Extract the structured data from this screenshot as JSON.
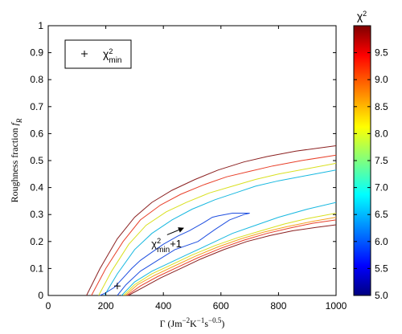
{
  "chart_data": {
    "type": "line",
    "chart_kind": "contour",
    "title": "",
    "xlabel": "Γ (Jm⁻²K⁻¹s⁻⁰·⁵)",
    "ylabel": "Roughness fraction f_R",
    "xlim": [
      0,
      1000
    ],
    "ylim": [
      0,
      1
    ],
    "x_ticks": [
      "0",
      "200",
      "400",
      "600",
      "800",
      "1000"
    ],
    "y_ticks": [
      "0",
      "0.1",
      "0.2",
      "0.3",
      "0.4",
      "0.5",
      "0.6",
      "0.7",
      "0.8",
      "0.9",
      "1"
    ],
    "grid": false,
    "legend": {
      "placement": "top-left",
      "marker": "+",
      "label": "χ²min"
    },
    "min_point": {
      "x": 240,
      "y": 0.035
    },
    "annotation": {
      "text": "χ²min+1",
      "text_x": 375,
      "text_y": 0.19,
      "arrow_to_x": 470,
      "arrow_to_y": 0.25
    },
    "colorbar": {
      "label": "χ²",
      "range": [
        5.0,
        10.0
      ],
      "tick_labels": [
        "5.0",
        "5.5",
        "6.0",
        "6.5",
        "7.0",
        "7.5",
        "8.0",
        "8.5",
        "9.0",
        "9.5"
      ],
      "colormap": "jet"
    },
    "series": [
      {
        "level": 6.0,
        "color": "#1f4fe0",
        "points": [
          [
            240,
            0
          ],
          [
            270,
            0.04
          ],
          [
            320,
            0.09
          ],
          [
            380,
            0.13
          ],
          [
            440,
            0.17
          ],
          [
            520,
            0.2
          ],
          [
            580,
            0.245
          ],
          [
            630,
            0.28
          ],
          [
            680,
            0.3
          ],
          [
            700,
            0.305
          ],
          [
            640,
            0.305
          ],
          [
            590,
            0.295
          ],
          [
            570,
            0.29
          ],
          [
            540,
            0.27
          ],
          [
            490,
            0.24
          ],
          [
            450,
            0.22
          ],
          [
            400,
            0.19
          ],
          [
            360,
            0.16
          ],
          [
            320,
            0.13
          ],
          [
            290,
            0.1
          ],
          [
            260,
            0.065
          ],
          [
            230,
            0.03
          ],
          [
            200,
            0.01
          ],
          [
            180,
            0
          ]
        ]
      },
      {
        "level": 7.0,
        "color": "#18b8e0",
        "points": [
          [
            255,
            0
          ],
          [
            300,
            0.05
          ],
          [
            360,
            0.09
          ],
          [
            420,
            0.12
          ],
          [
            480,
            0.15
          ],
          [
            560,
            0.19
          ],
          [
            640,
            0.23
          ],
          [
            720,
            0.26
          ],
          [
            800,
            0.29
          ],
          [
            900,
            0.32
          ],
          [
            1000,
            0.345
          ]
        ]
      },
      {
        "level": 7.0,
        "color": "#18b8e0",
        "points": [
          [
            195,
            0
          ],
          [
            240,
            0.08
          ],
          [
            300,
            0.17
          ],
          [
            360,
            0.23
          ],
          [
            430,
            0.28
          ],
          [
            500,
            0.32
          ],
          [
            580,
            0.355
          ],
          [
            650,
            0.38
          ],
          [
            720,
            0.405
          ],
          [
            800,
            0.425
          ],
          [
            900,
            0.445
          ],
          [
            1000,
            0.465
          ]
        ]
      },
      {
        "level": 8.0,
        "color": "#d9e020",
        "points": [
          [
            262,
            0
          ],
          [
            300,
            0.04
          ],
          [
            360,
            0.08
          ],
          [
            430,
            0.115
          ],
          [
            500,
            0.15
          ],
          [
            580,
            0.185
          ],
          [
            660,
            0.215
          ],
          [
            740,
            0.24
          ],
          [
            820,
            0.265
          ],
          [
            900,
            0.285
          ],
          [
            1000,
            0.305
          ]
        ]
      },
      {
        "level": 8.0,
        "color": "#d9e020",
        "points": [
          [
            175,
            0
          ],
          [
            220,
            0.09
          ],
          [
            280,
            0.19
          ],
          [
            340,
            0.26
          ],
          [
            410,
            0.31
          ],
          [
            480,
            0.345
          ],
          [
            560,
            0.38
          ],
          [
            640,
            0.405
          ],
          [
            720,
            0.43
          ],
          [
            800,
            0.45
          ],
          [
            900,
            0.47
          ],
          [
            1000,
            0.49
          ]
        ]
      },
      {
        "level": 8.5,
        "color": "#f5a020",
        "points": [
          [
            268,
            0
          ],
          [
            310,
            0.04
          ],
          [
            370,
            0.075
          ],
          [
            440,
            0.11
          ],
          [
            510,
            0.145
          ],
          [
            590,
            0.18
          ],
          [
            670,
            0.21
          ],
          [
            750,
            0.235
          ],
          [
            830,
            0.255
          ],
          [
            920,
            0.275
          ],
          [
            1000,
            0.29
          ]
        ]
      },
      {
        "level": 9.0,
        "color": "#e8402a",
        "points": [
          [
            273,
            0
          ],
          [
            320,
            0.035
          ],
          [
            380,
            0.07
          ],
          [
            450,
            0.105
          ],
          [
            520,
            0.14
          ],
          [
            600,
            0.175
          ],
          [
            680,
            0.205
          ],
          [
            760,
            0.23
          ],
          [
            840,
            0.25
          ],
          [
            920,
            0.268
          ],
          [
            1000,
            0.28
          ]
        ]
      },
      {
        "level": 9.0,
        "color": "#e8402a",
        "points": [
          [
            150,
            0
          ],
          [
            200,
            0.1
          ],
          [
            260,
            0.2
          ],
          [
            320,
            0.28
          ],
          [
            390,
            0.335
          ],
          [
            460,
            0.375
          ],
          [
            540,
            0.41
          ],
          [
            620,
            0.44
          ],
          [
            700,
            0.46
          ],
          [
            780,
            0.48
          ],
          [
            880,
            0.5
          ],
          [
            1000,
            0.52
          ]
        ]
      },
      {
        "level": 9.8,
        "color": "#8b2020",
        "points": [
          [
            278,
            0
          ],
          [
            330,
            0.03
          ],
          [
            390,
            0.065
          ],
          [
            460,
            0.1
          ],
          [
            530,
            0.135
          ],
          [
            610,
            0.17
          ],
          [
            690,
            0.2
          ],
          [
            770,
            0.222
          ],
          [
            850,
            0.24
          ],
          [
            930,
            0.252
          ],
          [
            1000,
            0.262
          ]
        ]
      },
      {
        "level": 9.8,
        "color": "#8b2020",
        "points": [
          [
            133,
            0
          ],
          [
            180,
            0.1
          ],
          [
            240,
            0.21
          ],
          [
            300,
            0.29
          ],
          [
            360,
            0.345
          ],
          [
            430,
            0.39
          ],
          [
            510,
            0.43
          ],
          [
            590,
            0.465
          ],
          [
            680,
            0.495
          ],
          [
            760,
            0.515
          ],
          [
            860,
            0.535
          ],
          [
            1000,
            0.555
          ]
        ]
      }
    ]
  }
}
